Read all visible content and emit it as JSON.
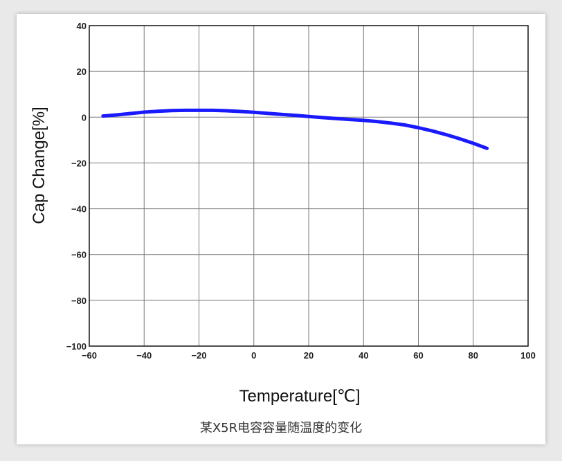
{
  "caption": "某X5R电容容量随温度的变化",
  "colors": {
    "line": "#1a1aff",
    "grid": "#777777",
    "frame": "#111111"
  },
  "chart_data": {
    "type": "line",
    "title": "",
    "xlabel": "Temperature[℃]",
    "ylabel": "Cap Change[%]",
    "xlim": [
      -60,
      100
    ],
    "ylim": [
      -100,
      40
    ],
    "xticks": [
      -60,
      -40,
      -20,
      0,
      20,
      40,
      60,
      80,
      100
    ],
    "yticks": [
      40,
      20,
      0,
      -20,
      -40,
      -60,
      -80,
      -100
    ],
    "xtick_labels": [
      "−60",
      "−40",
      "−20",
      "0",
      "20",
      "40",
      "60",
      "80",
      "100"
    ],
    "ytick_labels": [
      "40",
      "20",
      "0",
      "−20",
      "−40",
      "−60",
      "−80",
      "−100"
    ],
    "grid": true,
    "series": [
      {
        "x": [
          -55,
          -50,
          -45,
          -40,
          -35,
          -30,
          -25,
          -20,
          -15,
          -10,
          -5,
          0,
          5,
          10,
          15,
          20,
          25,
          30,
          35,
          40,
          45,
          50,
          55,
          60,
          65,
          70,
          75,
          80,
          85
        ],
        "y": [
          0.5,
          1.0,
          1.6,
          2.2,
          2.6,
          2.9,
          3.0,
          3.0,
          3.0,
          2.8,
          2.5,
          2.1,
          1.7,
          1.2,
          0.8,
          0.3,
          -0.2,
          -0.6,
          -1.0,
          -1.4,
          -1.9,
          -2.6,
          -3.4,
          -4.6,
          -6.0,
          -7.6,
          -9.4,
          -11.4,
          -13.6
        ]
      }
    ]
  }
}
